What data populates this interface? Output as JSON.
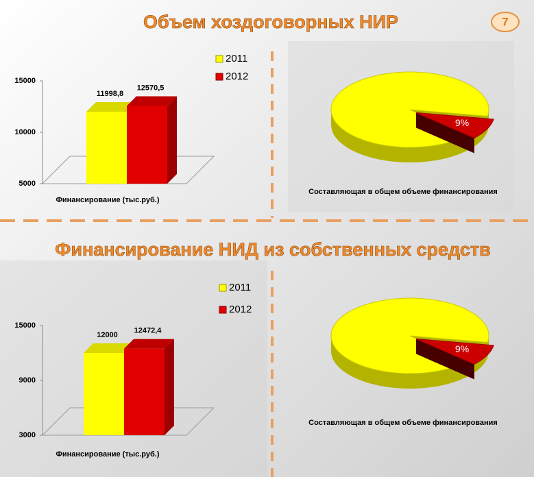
{
  "page_number": "7",
  "sections": [
    {
      "title": "Объем хоздоговорных НИР"
    },
    {
      "title": "Финансирование НИД из собственных средств"
    }
  ],
  "chart_data": [
    {
      "type": "bar",
      "xlabel": "Финансирование (тыс.руб.)",
      "categories": [
        null
      ],
      "series": [
        {
          "name": "2011",
          "color": "#ffff00",
          "values": [
            11998.8
          ],
          "value_labels": [
            "11998,8"
          ]
        },
        {
          "name": "2012",
          "color": "#e00000",
          "values": [
            12570.5
          ],
          "value_labels": [
            "12570,5"
          ]
        }
      ],
      "ylim": [
        5000,
        15000
      ],
      "yticks": [
        5000,
        10000,
        15000
      ]
    },
    {
      "type": "pie",
      "xlabel": "Составляющая в общем объеме финансирования",
      "values": [
        91,
        9
      ],
      "value_labels": [
        null,
        "9%"
      ],
      "colors": [
        "#ffff00",
        "#cc0000"
      ]
    },
    {
      "type": "bar",
      "xlabel": "Финансирование (тыс.руб.)",
      "categories": [
        null
      ],
      "series": [
        {
          "name": "2011",
          "color": "#ffff00",
          "values": [
            12000
          ]
        },
        {
          "name": "2012",
          "color": "#e00000",
          "values": [
            12472.4
          ],
          "value_labels": [
            "12472,4"
          ]
        }
      ],
      "ylim": [
        3000,
        15000
      ],
      "yticks": [
        3000,
        9000,
        15000
      ]
    },
    {
      "type": "pie",
      "xlabel": "Составляющая в общем объеме финансирования",
      "values": [
        91,
        9
      ],
      "value_labels": [
        null,
        "9%"
      ],
      "colors": [
        "#ffff00",
        "#cc0000"
      ]
    }
  ]
}
